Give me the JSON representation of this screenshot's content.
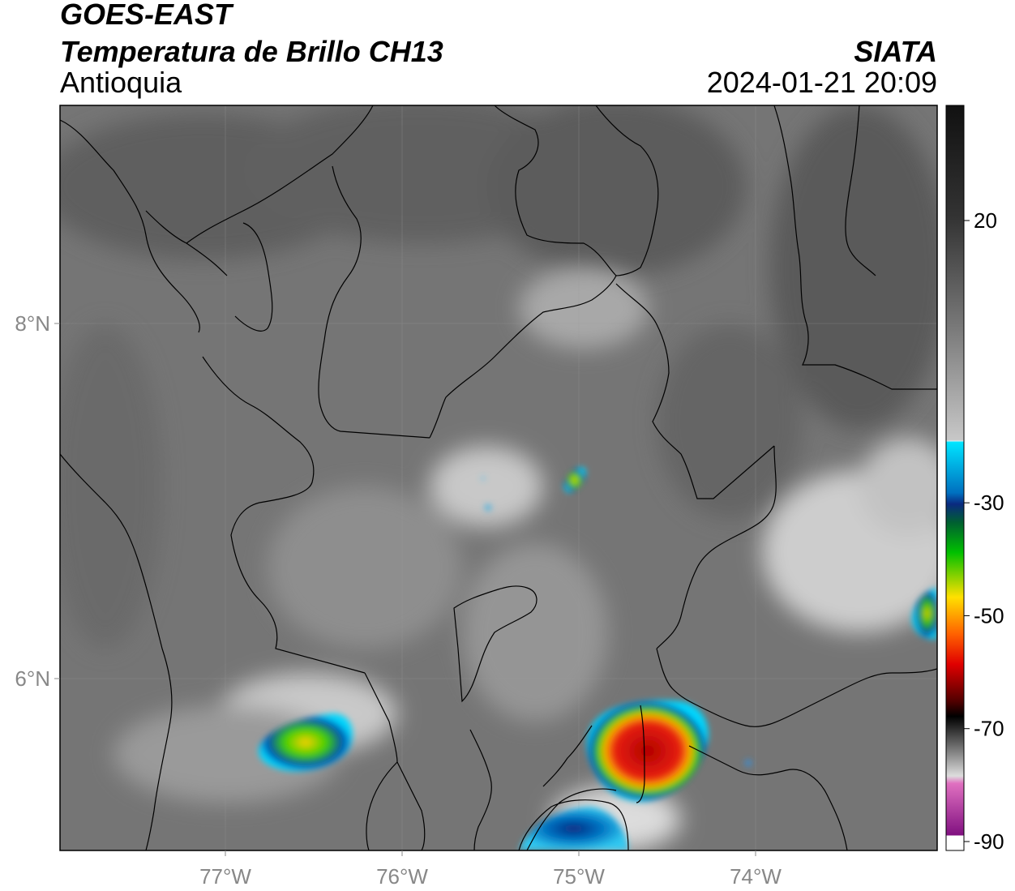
{
  "header": {
    "satellite": "GOES-EAST",
    "product": "Temperatura de Brillo CH13",
    "region": "Antioquia",
    "organization": "SIATA",
    "datetime": "2024-01-21 20:09"
  },
  "map": {
    "lon_ticks": [
      {
        "value": -77,
        "label": "77°W"
      },
      {
        "value": -76,
        "label": "76°W"
      },
      {
        "value": -75,
        "label": "75°W"
      },
      {
        "value": -74,
        "label": "74°W"
      }
    ],
    "lat_ticks": [
      {
        "value": 8,
        "label": "8°N"
      },
      {
        "value": 6,
        "label": "6°N"
      }
    ],
    "colors": {
      "land_dark": "#5e5e5e",
      "land_mid": "#7a7a7a",
      "cloud_light": "#cfcfcf",
      "border": "#000000"
    }
  },
  "colorbar": {
    "ticks": [
      {
        "value": 20,
        "label": "20"
      },
      {
        "value": -30,
        "label": "-30"
      },
      {
        "value": -50,
        "label": "-50"
      },
      {
        "value": -70,
        "label": "-70"
      },
      {
        "value": -90,
        "label": "-90"
      }
    ]
  }
}
